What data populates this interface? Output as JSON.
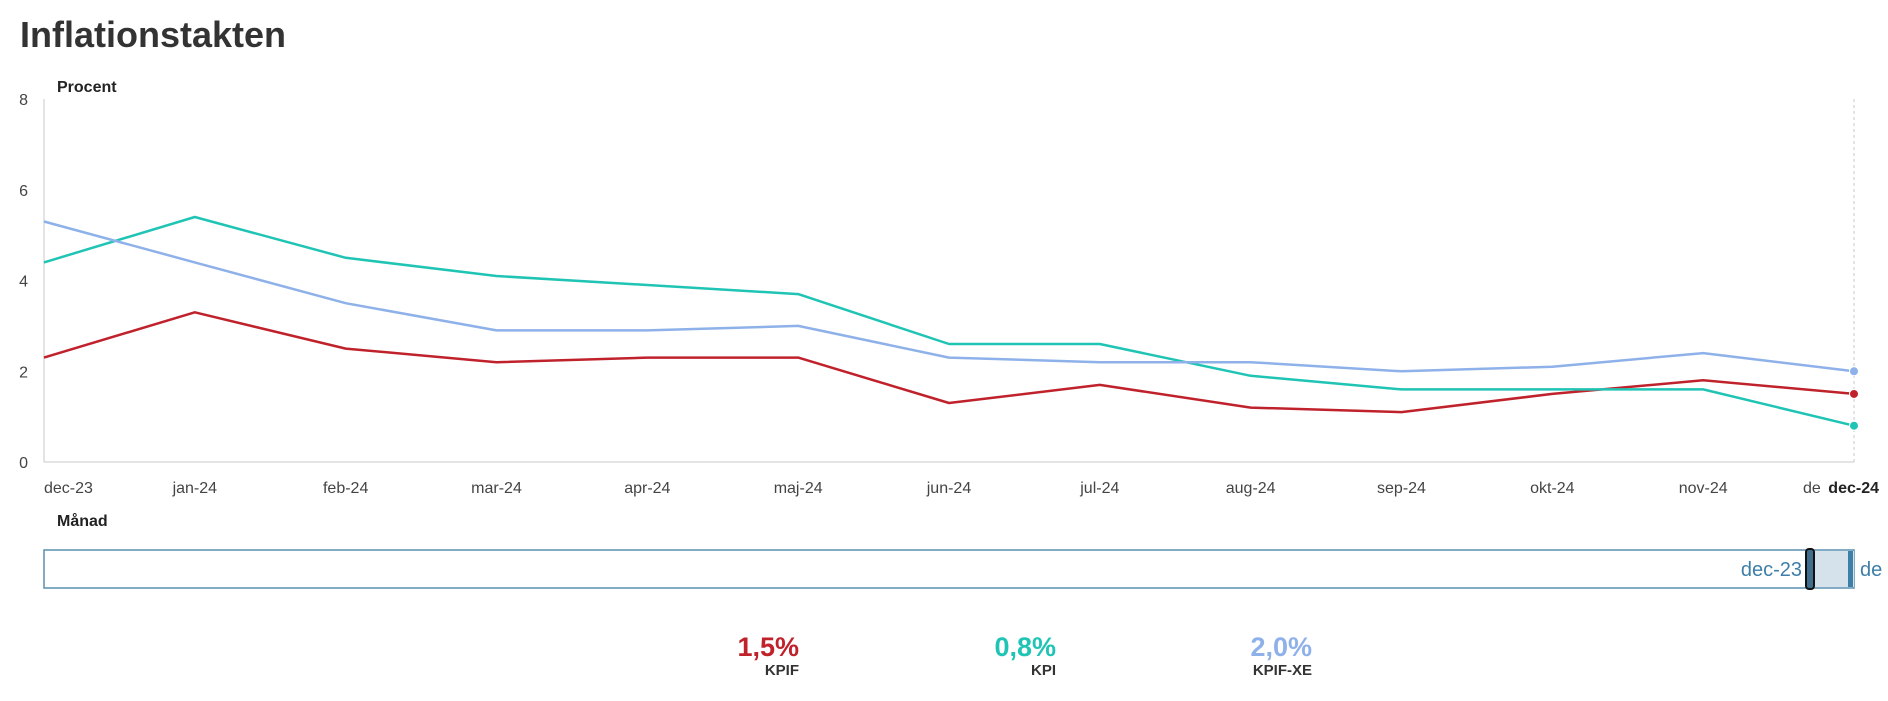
{
  "title": "Inflationstakten",
  "chart_data": {
    "type": "line",
    "title": "Inflationstakten",
    "ylabel": "Procent",
    "xlabel": "Månad",
    "ylim": [
      0,
      8
    ],
    "yticks": [
      0,
      2,
      4,
      6,
      8
    ],
    "categories": [
      "dec-23",
      "jan-24",
      "feb-24",
      "mar-24",
      "apr-24",
      "maj-24",
      "jun-24",
      "jul-24",
      "aug-24",
      "sep-24",
      "okt-24",
      "nov-24",
      "dec-24"
    ],
    "series": [
      {
        "name": "KPIF",
        "color": "#c0222c",
        "values": [
          2.3,
          3.3,
          2.5,
          2.2,
          2.3,
          2.3,
          1.3,
          1.7,
          1.2,
          1.1,
          1.5,
          1.8,
          1.5
        ]
      },
      {
        "name": "KPI",
        "color": "#20c4b4",
        "values": [
          4.4,
          5.4,
          4.5,
          4.1,
          3.9,
          3.7,
          2.6,
          2.6,
          1.9,
          1.6,
          1.6,
          1.6,
          0.8
        ]
      },
      {
        "name": "KPIF-XE",
        "color": "#8eb1ea",
        "values": [
          5.3,
          4.4,
          3.5,
          2.9,
          2.9,
          3.0,
          2.3,
          2.2,
          2.2,
          2.0,
          2.1,
          2.4,
          2.0
        ]
      }
    ],
    "grid": false,
    "legend_position": "bottom-center",
    "highlighted_category": "dec-24",
    "truncated_tick_label": "de"
  },
  "navigator": {
    "start_label": "dec-23",
    "end_label": "de"
  },
  "legend": [
    {
      "value": "1,5%",
      "name": "KPIF",
      "color": "#c0222c"
    },
    {
      "value": "0,8%",
      "name": "KPI",
      "color": "#20c4b4"
    },
    {
      "value": "2,0%",
      "name": "KPIF-XE",
      "color": "#8eb1ea"
    }
  ]
}
